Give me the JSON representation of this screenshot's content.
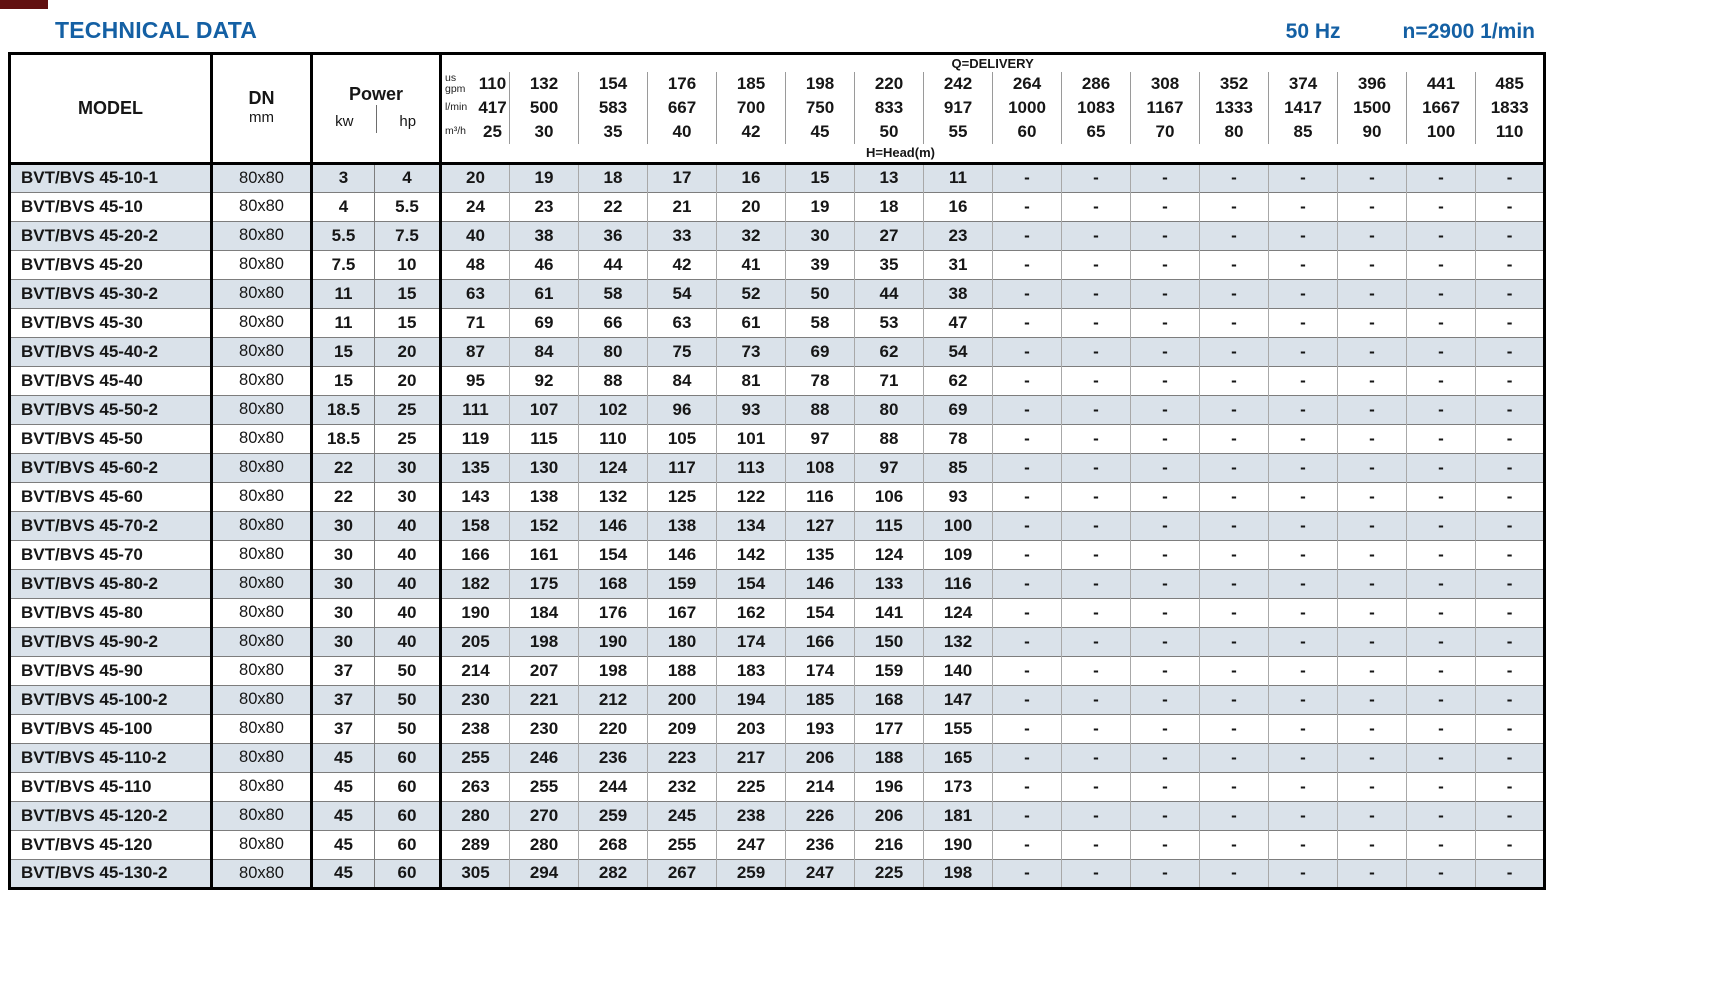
{
  "page": {
    "title": "TECHNICAL DATA",
    "frequency": "50 Hz",
    "speed": "n=2900 1/min",
    "accent_color": "#1460a4",
    "shaded_row_color": "#dae2ea"
  },
  "table": {
    "headers": {
      "model": "MODEL",
      "dn": "DN",
      "dn_unit": "mm",
      "power": "Power",
      "power_units": [
        "kw",
        "hp"
      ],
      "delivery": "Q=DELIVERY",
      "head": "H=Head(m)"
    },
    "unit_rows": [
      {
        "label_lines": [
          "us",
          "gpm"
        ],
        "values": [
          "110",
          "132",
          "154",
          "176",
          "185",
          "198",
          "220",
          "242",
          "264",
          "286",
          "308",
          "352",
          "374",
          "396",
          "441",
          "485"
        ]
      },
      {
        "label_lines": [
          "l/min"
        ],
        "values": [
          "417",
          "500",
          "583",
          "667",
          "700",
          "750",
          "833",
          "917",
          "1000",
          "1083",
          "1167",
          "1333",
          "1417",
          "1500",
          "1667",
          "1833"
        ]
      },
      {
        "label_lines": [
          "m³/h"
        ],
        "values": [
          "25",
          "30",
          "35",
          "40",
          "42",
          "45",
          "50",
          "55",
          "60",
          "65",
          "70",
          "80",
          "85",
          "90",
          "100",
          "110"
        ]
      }
    ],
    "rows": [
      {
        "model": "BVT/BVS 45-10-1",
        "dn": "80x80",
        "kw": "3",
        "hp": "4",
        "values": [
          "20",
          "19",
          "18",
          "17",
          "16",
          "15",
          "13",
          "11",
          "-",
          "-",
          "-",
          "-",
          "-",
          "-",
          "-",
          "-"
        ]
      },
      {
        "model": "BVT/BVS 45-10",
        "dn": "80x80",
        "kw": "4",
        "hp": "5.5",
        "values": [
          "24",
          "23",
          "22",
          "21",
          "20",
          "19",
          "18",
          "16",
          "-",
          "-",
          "-",
          "-",
          "-",
          "-",
          "-",
          "-"
        ]
      },
      {
        "model": "BVT/BVS 45-20-2",
        "dn": "80x80",
        "kw": "5.5",
        "hp": "7.5",
        "values": [
          "40",
          "38",
          "36",
          "33",
          "32",
          "30",
          "27",
          "23",
          "-",
          "-",
          "-",
          "-",
          "-",
          "-",
          "-",
          "-"
        ]
      },
      {
        "model": "BVT/BVS 45-20",
        "dn": "80x80",
        "kw": "7.5",
        "hp": "10",
        "values": [
          "48",
          "46",
          "44",
          "42",
          "41",
          "39",
          "35",
          "31",
          "-",
          "-",
          "-",
          "-",
          "-",
          "-",
          "-",
          "-"
        ]
      },
      {
        "model": "BVT/BVS 45-30-2",
        "dn": "80x80",
        "kw": "11",
        "hp": "15",
        "values": [
          "63",
          "61",
          "58",
          "54",
          "52",
          "50",
          "44",
          "38",
          "-",
          "-",
          "-",
          "-",
          "-",
          "-",
          "-",
          "-"
        ]
      },
      {
        "model": "BVT/BVS 45-30",
        "dn": "80x80",
        "kw": "11",
        "hp": "15",
        "values": [
          "71",
          "69",
          "66",
          "63",
          "61",
          "58",
          "53",
          "47",
          "-",
          "-",
          "-",
          "-",
          "-",
          "-",
          "-",
          "-"
        ]
      },
      {
        "model": "BVT/BVS 45-40-2",
        "dn": "80x80",
        "kw": "15",
        "hp": "20",
        "values": [
          "87",
          "84",
          "80",
          "75",
          "73",
          "69",
          "62",
          "54",
          "-",
          "-",
          "-",
          "-",
          "-",
          "-",
          "-",
          "-"
        ]
      },
      {
        "model": "BVT/BVS 45-40",
        "dn": "80x80",
        "kw": "15",
        "hp": "20",
        "values": [
          "95",
          "92",
          "88",
          "84",
          "81",
          "78",
          "71",
          "62",
          "-",
          "-",
          "-",
          "-",
          "-",
          "-",
          "-",
          "-"
        ]
      },
      {
        "model": "BVT/BVS 45-50-2",
        "dn": "80x80",
        "kw": "18.5",
        "hp": "25",
        "values": [
          "111",
          "107",
          "102",
          "96",
          "93",
          "88",
          "80",
          "69",
          "-",
          "-",
          "-",
          "-",
          "-",
          "-",
          "-",
          "-"
        ]
      },
      {
        "model": "BVT/BVS 45-50",
        "dn": "80x80",
        "kw": "18.5",
        "hp": "25",
        "values": [
          "119",
          "115",
          "110",
          "105",
          "101",
          "97",
          "88",
          "78",
          "-",
          "-",
          "-",
          "-",
          "-",
          "-",
          "-",
          "-"
        ]
      },
      {
        "model": "BVT/BVS 45-60-2",
        "dn": "80x80",
        "kw": "22",
        "hp": "30",
        "values": [
          "135",
          "130",
          "124",
          "117",
          "113",
          "108",
          "97",
          "85",
          "-",
          "-",
          "-",
          "-",
          "-",
          "-",
          "-",
          "-"
        ]
      },
      {
        "model": "BVT/BVS 45-60",
        "dn": "80x80",
        "kw": "22",
        "hp": "30",
        "values": [
          "143",
          "138",
          "132",
          "125",
          "122",
          "116",
          "106",
          "93",
          "-",
          "-",
          "-",
          "-",
          "-",
          "-",
          "-",
          "-"
        ]
      },
      {
        "model": "BVT/BVS 45-70-2",
        "dn": "80x80",
        "kw": "30",
        "hp": "40",
        "values": [
          "158",
          "152",
          "146",
          "138",
          "134",
          "127",
          "115",
          "100",
          "-",
          "-",
          "-",
          "-",
          "-",
          "-",
          "-",
          "-"
        ]
      },
      {
        "model": "BVT/BVS 45-70",
        "dn": "80x80",
        "kw": "30",
        "hp": "40",
        "values": [
          "166",
          "161",
          "154",
          "146",
          "142",
          "135",
          "124",
          "109",
          "-",
          "-",
          "-",
          "-",
          "-",
          "-",
          "-",
          "-"
        ]
      },
      {
        "model": "BVT/BVS 45-80-2",
        "dn": "80x80",
        "kw": "30",
        "hp": "40",
        "values": [
          "182",
          "175",
          "168",
          "159",
          "154",
          "146",
          "133",
          "116",
          "-",
          "-",
          "-",
          "-",
          "-",
          "-",
          "-",
          "-"
        ]
      },
      {
        "model": "BVT/BVS 45-80",
        "dn": "80x80",
        "kw": "30",
        "hp": "40",
        "values": [
          "190",
          "184",
          "176",
          "167",
          "162",
          "154",
          "141",
          "124",
          "-",
          "-",
          "-",
          "-",
          "-",
          "-",
          "-",
          "-"
        ]
      },
      {
        "model": "BVT/BVS 45-90-2",
        "dn": "80x80",
        "kw": "30",
        "hp": "40",
        "values": [
          "205",
          "198",
          "190",
          "180",
          "174",
          "166",
          "150",
          "132",
          "-",
          "-",
          "-",
          "-",
          "-",
          "-",
          "-",
          "-"
        ]
      },
      {
        "model": "BVT/BVS 45-90",
        "dn": "80x80",
        "kw": "37",
        "hp": "50",
        "values": [
          "214",
          "207",
          "198",
          "188",
          "183",
          "174",
          "159",
          "140",
          "-",
          "-",
          "-",
          "-",
          "-",
          "-",
          "-",
          "-"
        ]
      },
      {
        "model": "BVT/BVS 45-100-2",
        "dn": "80x80",
        "kw": "37",
        "hp": "50",
        "values": [
          "230",
          "221",
          "212",
          "200",
          "194",
          "185",
          "168",
          "147",
          "-",
          "-",
          "-",
          "-",
          "-",
          "-",
          "-",
          "-"
        ]
      },
      {
        "model": "BVT/BVS 45-100",
        "dn": "80x80",
        "kw": "37",
        "hp": "50",
        "values": [
          "238",
          "230",
          "220",
          "209",
          "203",
          "193",
          "177",
          "155",
          "-",
          "-",
          "-",
          "-",
          "-",
          "-",
          "-",
          "-"
        ]
      },
      {
        "model": "BVT/BVS 45-110-2",
        "dn": "80x80",
        "kw": "45",
        "hp": "60",
        "values": [
          "255",
          "246",
          "236",
          "223",
          "217",
          "206",
          "188",
          "165",
          "-",
          "-",
          "-",
          "-",
          "-",
          "-",
          "-",
          "-"
        ]
      },
      {
        "model": "BVT/BVS 45-110",
        "dn": "80x80",
        "kw": "45",
        "hp": "60",
        "values": [
          "263",
          "255",
          "244",
          "232",
          "225",
          "214",
          "196",
          "173",
          "-",
          "-",
          "-",
          "-",
          "-",
          "-",
          "-",
          "-"
        ]
      },
      {
        "model": "BVT/BVS 45-120-2",
        "dn": "80x80",
        "kw": "45",
        "hp": "60",
        "values": [
          "280",
          "270",
          "259",
          "245",
          "238",
          "226",
          "206",
          "181",
          "-",
          "-",
          "-",
          "-",
          "-",
          "-",
          "-",
          "-"
        ]
      },
      {
        "model": "BVT/BVS 45-120",
        "dn": "80x80",
        "kw": "45",
        "hp": "60",
        "values": [
          "289",
          "280",
          "268",
          "255",
          "247",
          "236",
          "216",
          "190",
          "-",
          "-",
          "-",
          "-",
          "-",
          "-",
          "-",
          "-"
        ]
      },
      {
        "model": "BVT/BVS 45-130-2",
        "dn": "80x80",
        "kw": "45",
        "hp": "60",
        "values": [
          "305",
          "294",
          "282",
          "267",
          "259",
          "247",
          "225",
          "198",
          "-",
          "-",
          "-",
          "-",
          "-",
          "-",
          "-",
          "-"
        ]
      }
    ]
  }
}
